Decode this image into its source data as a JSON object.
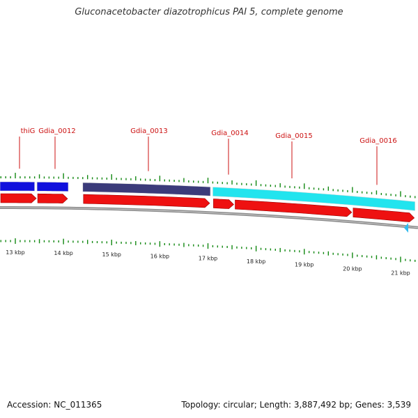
{
  "title": "Gluconacetobacter diazotrophicus PAI 5, complete genome",
  "footer": {
    "accession": "Accession: NC_011365",
    "stats": "Topology: circular; Length: 3,887,492 bp; Genes: 3,539"
  },
  "colors": {
    "cds": "#ee1111",
    "cds_edge": "#990000",
    "tick": "#118811",
    "backbone": "#8a8a8a",
    "label": "#cc1111",
    "blast_blue": "#1111dd",
    "blast_navy": "#3b3b7a",
    "blast_cyan": "#22e4ee"
  },
  "genes": [
    {
      "name": "thiG",
      "start_kbp": 12.65,
      "end_kbp": 13.45
    },
    {
      "name": "Gdia_0012",
      "start_kbp": 13.45,
      "end_kbp": 14.1
    },
    {
      "name": "Gdia_0013",
      "start_kbp": 14.4,
      "end_kbp": 17.05
    },
    {
      "name": "Gdia_0014",
      "start_kbp": 17.1,
      "end_kbp": 17.55
    },
    {
      "name": "Gdia_0015",
      "start_kbp": 17.55,
      "end_kbp": 20.0
    },
    {
      "name": "Gdia_0016",
      "start_kbp": 20.0,
      "end_kbp": 21.3
    }
  ],
  "feature_blocks": [
    {
      "color_key": "blast_blue",
      "start_kbp": 12.65,
      "end_kbp": 13.4
    },
    {
      "color_key": "blast_blue",
      "start_kbp": 13.45,
      "end_kbp": 14.1
    },
    {
      "color_key": "blast_navy",
      "start_kbp": 14.4,
      "end_kbp": 17.05
    },
    {
      "color_key": "blast_cyan",
      "start_kbp": 17.1,
      "end_kbp": 21.3
    }
  ],
  "scale": {
    "labels": [
      "13 kbp",
      "14 kbp",
      "15 kbp",
      "16 kbp",
      "17 kbp",
      "18 kbp",
      "19 kbp",
      "20 kbp",
      "21 kbp"
    ],
    "start_kbp": 13,
    "end_kbp": 21
  }
}
